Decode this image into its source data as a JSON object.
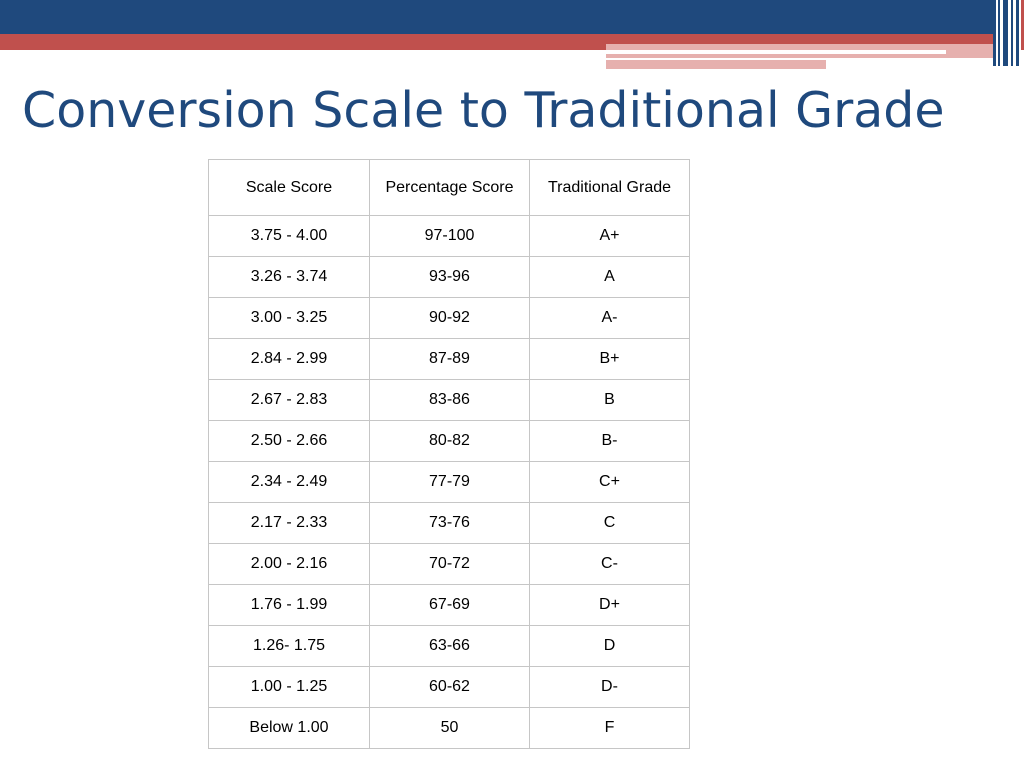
{
  "slide": {
    "title": "Conversion Scale to Traditional Grade"
  },
  "theme": {
    "accent_blue": "#1f497d",
    "accent_red": "#c0504d",
    "accent_pink": "#e6b0ae"
  },
  "table": {
    "headers": [
      "Scale Score",
      "Percentage Score",
      "Traditional Grade"
    ],
    "rows": [
      [
        "3.75 - 4.00",
        "97-100",
        "A+"
      ],
      [
        "3.26 - 3.74",
        "93-96",
        "A"
      ],
      [
        "3.00 - 3.25",
        "90-92",
        "A-"
      ],
      [
        "2.84 - 2.99",
        "87-89",
        "B+"
      ],
      [
        "2.67 - 2.83",
        "83-86",
        "B"
      ],
      [
        "2.50 - 2.66",
        "80-82",
        "B-"
      ],
      [
        "2.34 - 2.49",
        "77-79",
        "C+"
      ],
      [
        "2.17 - 2.33",
        "73-76",
        "C"
      ],
      [
        "2.00 - 2.16",
        "70-72",
        "C-"
      ],
      [
        "1.76 - 1.99",
        "67-69",
        "D+"
      ],
      [
        "1.26- 1.75",
        "63-66",
        "D"
      ],
      [
        "1.00 - 1.25",
        "60-62",
        "D-"
      ],
      [
        "Below 1.00",
        "50",
        "F"
      ]
    ]
  }
}
